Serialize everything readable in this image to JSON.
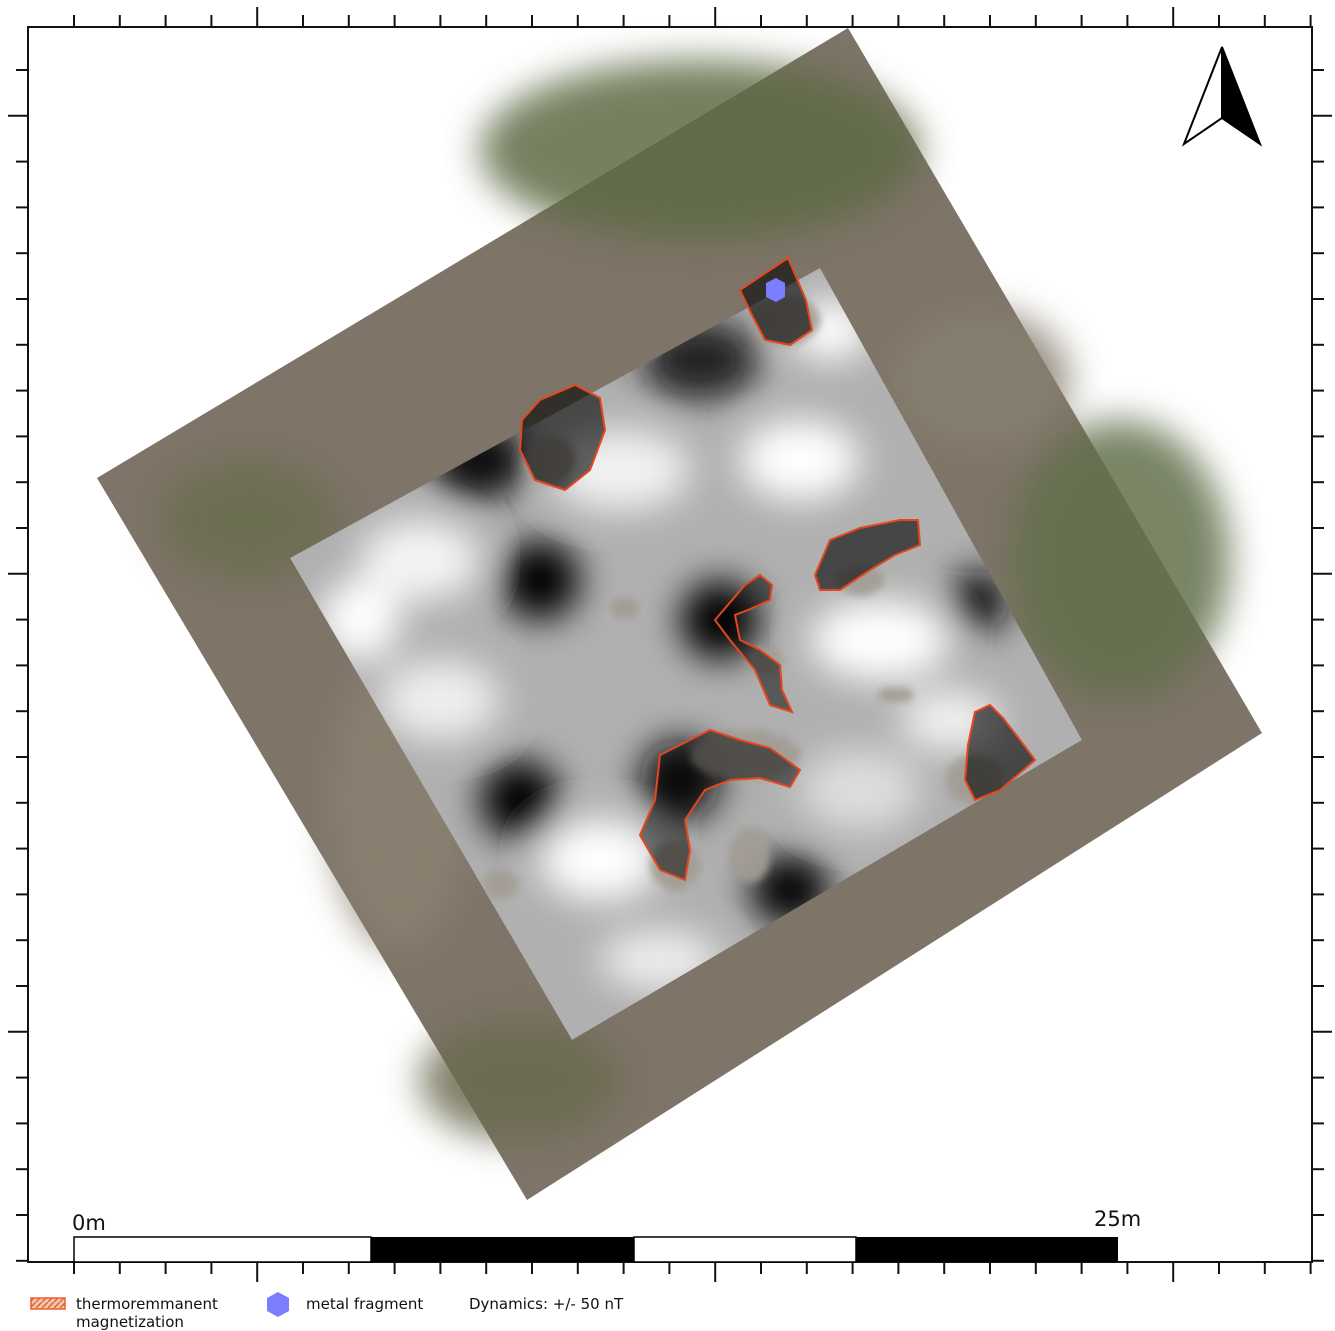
{
  "scale_bar": {
    "start_label": "0m",
    "end_label": "25m"
  },
  "legend": {
    "items": [
      {
        "label_lines": [
          "thermoremmanent",
          "magnetization"
        ]
      },
      {
        "label": "metal fragment"
      }
    ],
    "note": "Dynamics: +/- 50 nT"
  }
}
